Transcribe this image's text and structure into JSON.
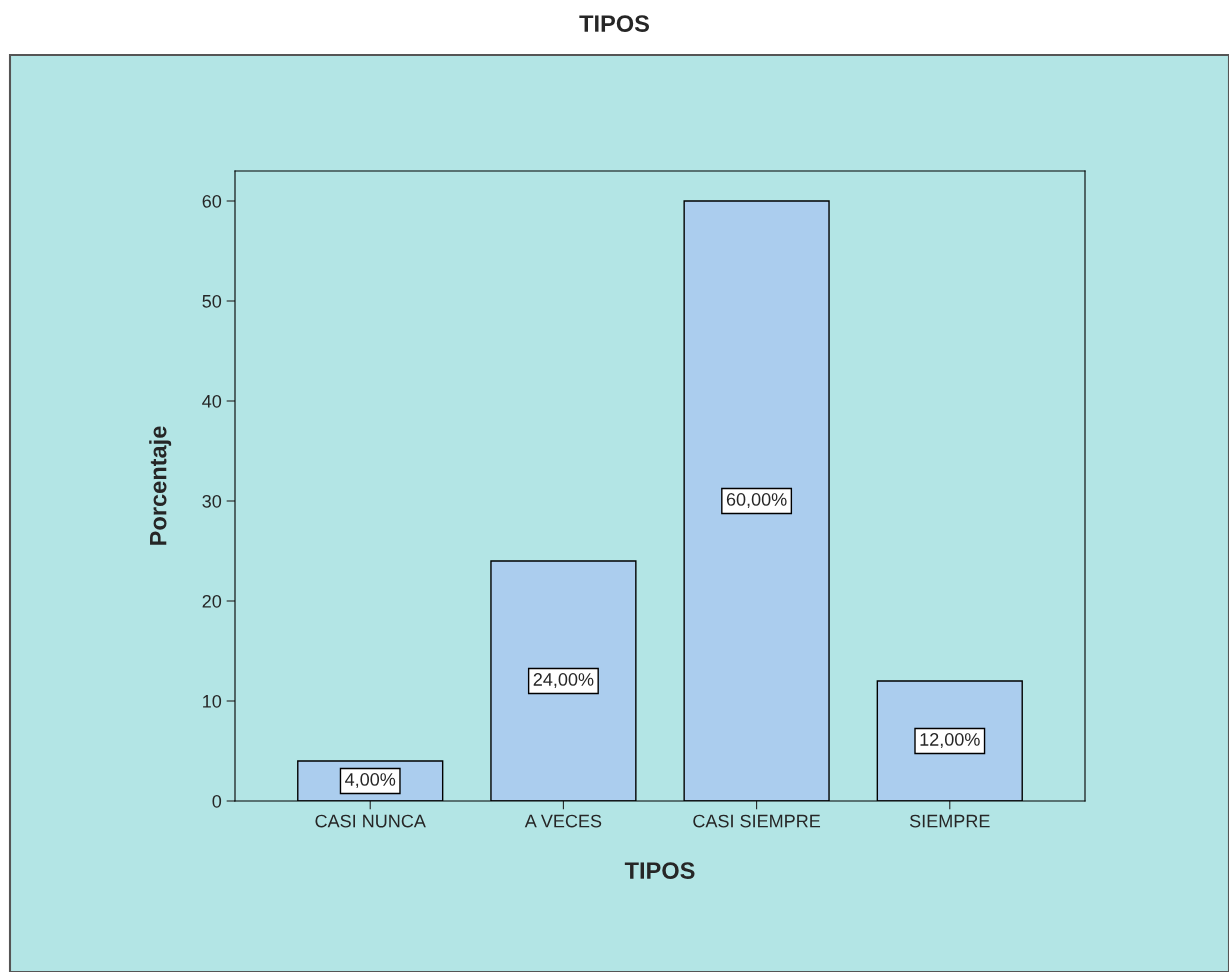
{
  "chart_data": {
    "type": "bar",
    "title": "TIPOS",
    "xlabel": "TIPOS",
    "ylabel": "Porcentaje",
    "categories": [
      "CASI NUNCA",
      "A VECES",
      "CASI SIEMPRE",
      "SIEMPRE"
    ],
    "values": [
      4,
      24,
      60,
      12
    ],
    "value_labels": [
      "4,00%",
      "24,00%",
      "60,00%",
      "12,00%"
    ],
    "color": "#abcdee",
    "ylim": [
      0,
      63
    ],
    "yticks": [
      0,
      10,
      20,
      30,
      40,
      50,
      60
    ],
    "grid": false
  }
}
